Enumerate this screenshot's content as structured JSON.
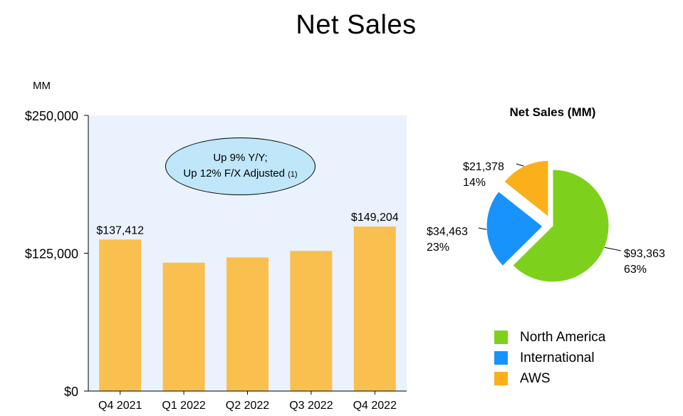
{
  "title": "Net Sales",
  "unit_label": "MM",
  "callout": {
    "line1": "Up 9% Y/Y;",
    "line2": "Up 12% F/X Adjusted",
    "note": "(1)"
  },
  "colors": {
    "bar": "#f9c04f",
    "plot_background": "#eaf2fd",
    "north_america": "#7dd11d",
    "international": "#1893fb",
    "aws": "#fbaf1b"
  },
  "chart_data": [
    {
      "type": "bar",
      "categories": [
        "Q4 2021",
        "Q1 2022",
        "Q2 2022",
        "Q3 2022",
        "Q4 2022"
      ],
      "values": [
        137412,
        116444,
        121234,
        127101,
        149204
      ],
      "data_labels": [
        "$137,412",
        "",
        "",
        "",
        "$149,204"
      ],
      "ylabel": "MM",
      "ylim": [
        0,
        250000
      ],
      "yticks": [
        0,
        125000,
        250000
      ],
      "ytick_labels": [
        "$0",
        "$125,000",
        "$250,000"
      ],
      "grid": false
    },
    {
      "type": "pie",
      "title": "Net Sales (MM)",
      "slices": [
        {
          "label": "North America",
          "value": 93363,
          "value_label": "$93,363",
          "percent_label": "63%",
          "exploded": false
        },
        {
          "label": "International",
          "value": 34463,
          "value_label": "$34,463",
          "percent_label": "23%",
          "exploded": true
        },
        {
          "label": "AWS",
          "value": 21378,
          "value_label": "$21,378",
          "percent_label": "14%",
          "exploded": true
        }
      ],
      "legend_position": "bottom-right"
    }
  ]
}
